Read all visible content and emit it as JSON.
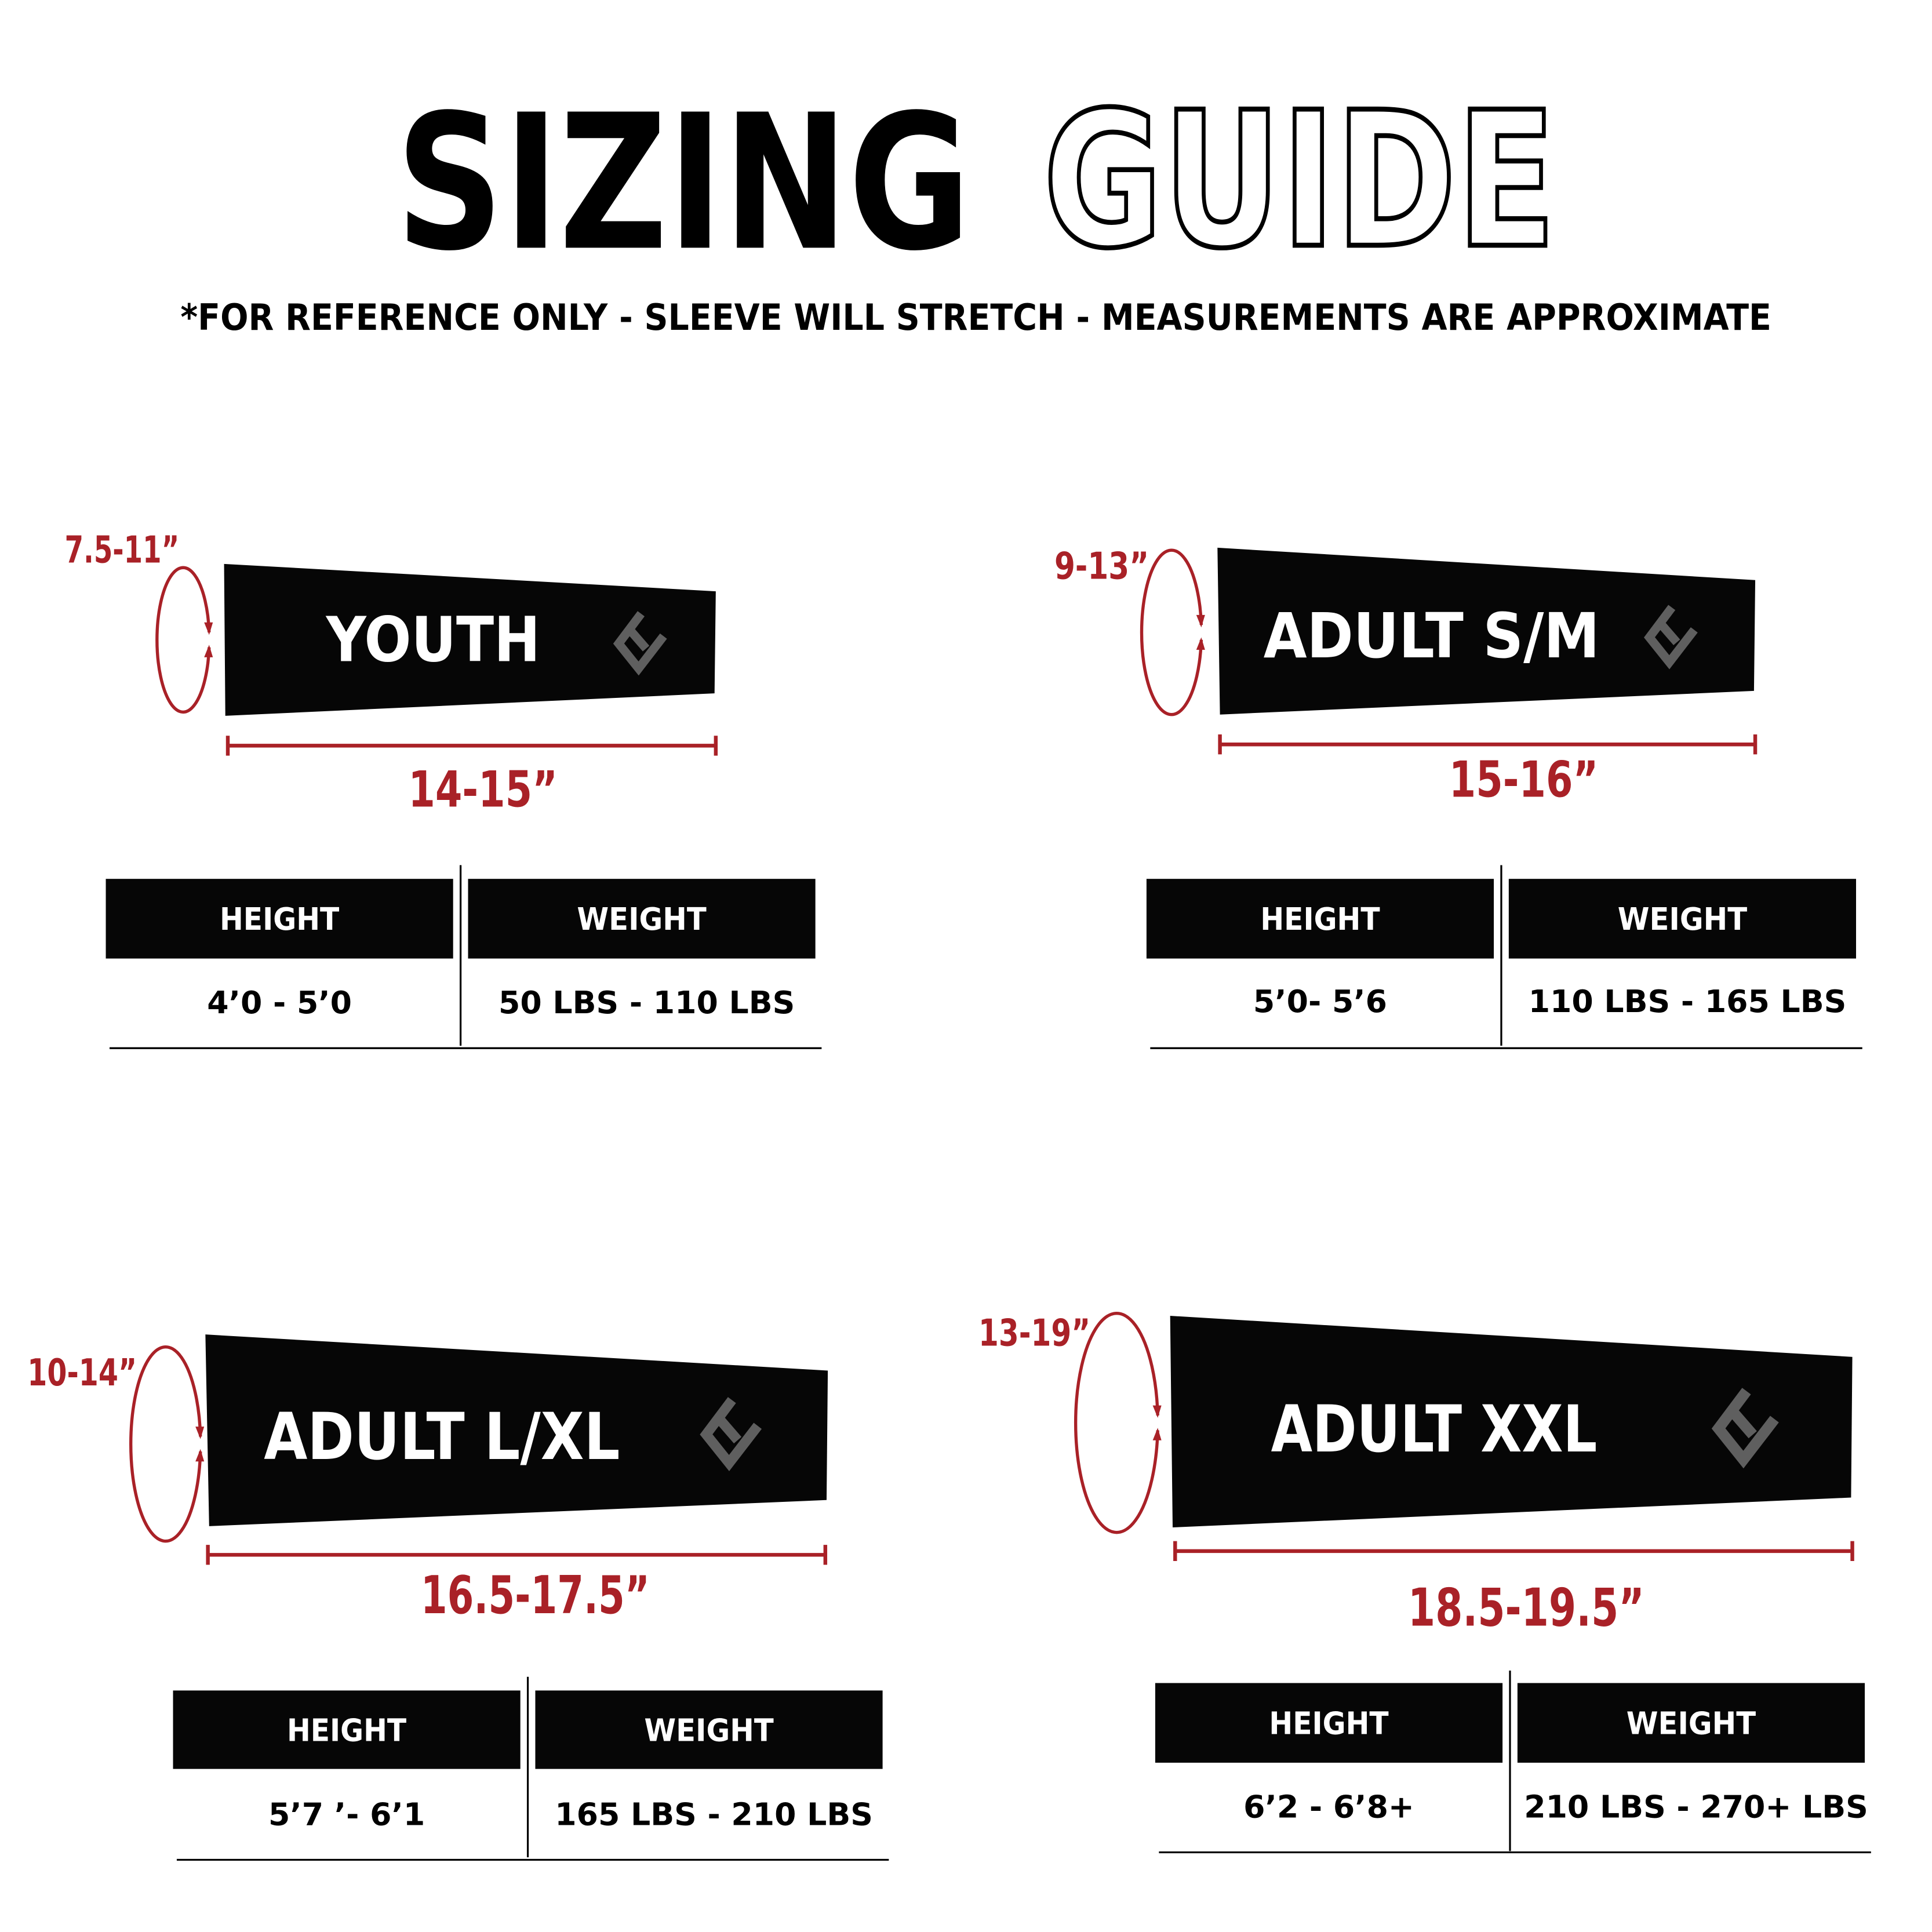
{
  "title": {
    "solid": "SIZING",
    "outline": "GUIDE"
  },
  "subtitle": "*FOR REFERENCE ONLY - SLEEVE WILL STRETCH - MEASUREMENTS ARE APPROXIMATE",
  "colors": {
    "accent_red": "#a92127",
    "sleeve": "#060606",
    "logo_gray": "#5f5f5f",
    "text": "#000000"
  },
  "logo_icon": "brand-e-chevron-icon",
  "table_headers": {
    "height": "HEIGHT",
    "weight": "WEIGHT"
  },
  "sizes": [
    {
      "name": "YOUTH",
      "circumference": "7.5-11”",
      "length": "14-15”",
      "height": "4’0 - 5’0",
      "weight": "50 LBS - 110 LBS"
    },
    {
      "name": "ADULT S/M",
      "circumference": "9-13”",
      "length": "15-16”",
      "height": "5’0- 5’6",
      "weight": "110 LBS - 165 LBS"
    },
    {
      "name": "ADULT L/XL",
      "circumference": "10-14”",
      "length": "16.5-17.5”",
      "height": "5’7 ’- 6’1",
      "weight": "165 LBS - 210 LBS"
    },
    {
      "name": "ADULT XXL",
      "circumference": "13-19”",
      "length": "18.5-19.5”",
      "height": "6’2 - 6’8+",
      "weight": "210 LBS - 270+ LBS"
    }
  ]
}
